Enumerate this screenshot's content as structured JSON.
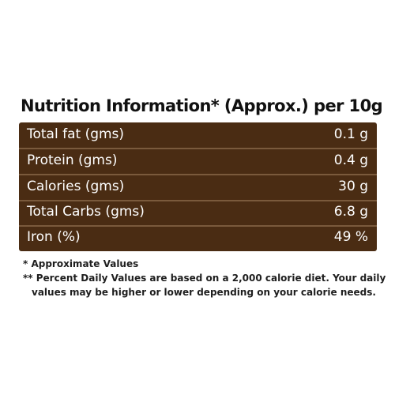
{
  "header": {
    "title": "Nutrition Information* (Approx.) per 10g"
  },
  "nutrition_table": {
    "rows": [
      {
        "label": "Total fat (gms)",
        "value": "0.1 g"
      },
      {
        "label": "Protein (gms)",
        "value": "0.4 g"
      },
      {
        "label": "Calories (gms)",
        "value": "30 g"
      },
      {
        "label": "Total Carbs (gms)",
        "value": "6.8 g"
      },
      {
        "label": "Iron (%)",
        "value": "49 %"
      }
    ]
  },
  "footnotes": {
    "note1": "* Approximate Values",
    "note2_line1": "** Percent Daily Values are based on a 2,000 calorie diet. Your daily",
    "note2_line2": "values may be higher or lower depending on your calorie needs."
  },
  "colors": {
    "table_background": "#4a2c13",
    "row_divider": "#7a5a3c",
    "table_text": "#ffffff"
  }
}
